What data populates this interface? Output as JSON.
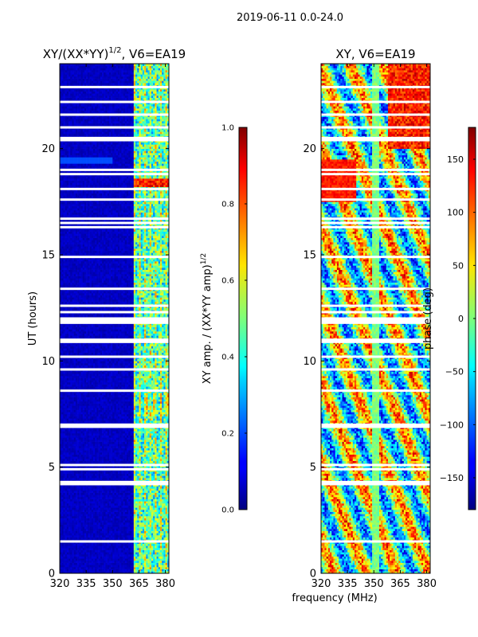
{
  "suptitle": "2019-06-11 0.0-24.0",
  "xlabel_shared": "frequency (MHz)",
  "chart_data": [
    {
      "type": "heatmap",
      "title_main": "XY/(XX*YY)",
      "title_sup": "1/2",
      "title_tail": ", V6=EA19",
      "ylabel": "UT (hours)",
      "x_ticks": [
        320,
        335,
        350,
        365,
        380
      ],
      "xlim": [
        320,
        382
      ],
      "y_ticks": [
        0,
        5,
        10,
        15,
        20
      ],
      "ylim": [
        0,
        24
      ],
      "colorbar": {
        "label_main": "XY amp. / (XX*YY amp)",
        "label_sup": "1/2",
        "range": [
          0.0,
          1.0
        ],
        "tick_values": [
          0.0,
          0.2,
          0.4,
          0.6,
          0.8,
          1.0
        ],
        "tick_labels": [
          "0.0",
          "0.2",
          "0.4",
          "0.6",
          "0.8",
          "1.0"
        ]
      },
      "blank_rows_ut": [
        1.5,
        4.2,
        4.3,
        4.9,
        5.1,
        6.9,
        7.0,
        8.6,
        9.6,
        10.2,
        10.9,
        11.0,
        11.8,
        11.9,
        12.0,
        12.3,
        12.6,
        13.4,
        14.9,
        16.3,
        16.5,
        16.7,
        17.6,
        18.1,
        18.8,
        19.0,
        20.4,
        20.5,
        21.0,
        21.6,
        22.2,
        22.9
      ]
    },
    {
      "type": "heatmap",
      "title_main": "XY, V6=EA19",
      "x_ticks": [
        320,
        335,
        350,
        365,
        380
      ],
      "xlim": [
        320,
        382
      ],
      "y_ticks": [
        0,
        5,
        10,
        15,
        20
      ],
      "ylim": [
        0,
        24
      ],
      "colorbar": {
        "label_main": "phase (deg)",
        "range": [
          -180,
          180
        ],
        "tick_values": [
          -150,
          -100,
          -50,
          0,
          50,
          100,
          150
        ],
        "tick_labels": [
          "−150",
          "−100",
          "−50",
          "0",
          "50",
          "100",
          "150"
        ]
      },
      "blank_rows_ut": [
        1.5,
        4.2,
        4.3,
        4.9,
        5.1,
        6.9,
        7.0,
        8.6,
        9.6,
        10.2,
        10.9,
        11.0,
        11.8,
        11.9,
        12.0,
        12.3,
        12.6,
        13.4,
        14.9,
        16.3,
        16.5,
        16.7,
        17.6,
        18.1,
        18.8,
        19.0,
        20.4,
        20.5,
        21.0,
        21.6,
        22.2,
        22.9
      ]
    }
  ]
}
